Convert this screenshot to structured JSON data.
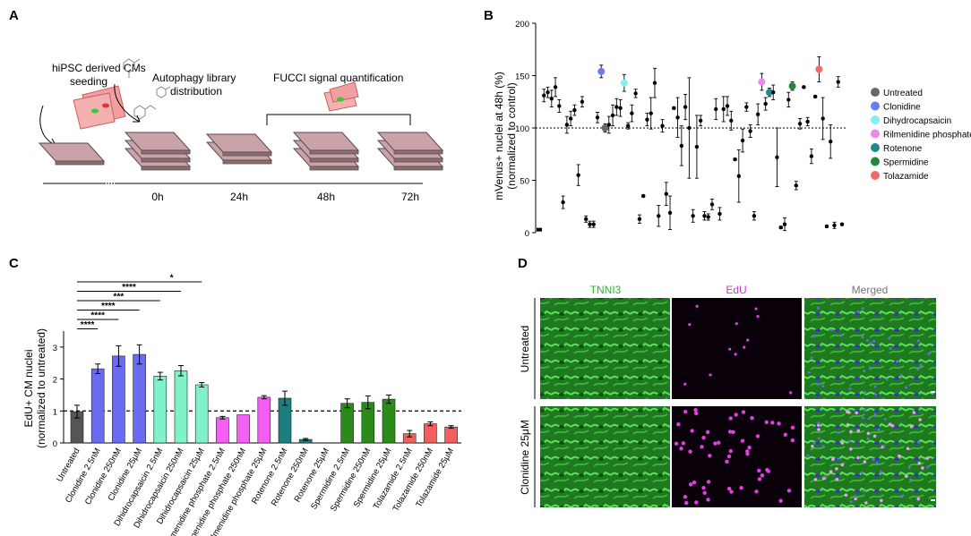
{
  "panels": {
    "a": "A",
    "b": "B",
    "c": "C",
    "d": "D"
  },
  "panel_a": {
    "step1": [
      "hiPSC derived CMs",
      "seeding"
    ],
    "step2": "Autophagy library",
    "step2b": "distribution",
    "step3": "FUCCI signal quantification",
    "timepoints": [
      "0h",
      "24h",
      "48h",
      "72h"
    ]
  },
  "chart_data": [
    {
      "type": "scatter",
      "panel": "B",
      "ylabel": "mVenus+ nuclei at 48h (%)",
      "ylabel2": "(normalized to control)",
      "ylim": [
        0,
        200
      ],
      "yticks": [
        "0",
        "50",
        "100",
        "150",
        "200"
      ],
      "reference_line": 100,
      "legend": [
        {
          "label": "Untreated",
          "color": "#666666"
        },
        {
          "label": "Clonidine",
          "color": "#6a7de8"
        },
        {
          "label": "Dihydrocapsaicin",
          "color": "#7ff2f2"
        },
        {
          "label": "Rilmenidine phosphate",
          "color": "#ef86ef"
        },
        {
          "label": "Rotenone",
          "color": "#1e8c8c"
        },
        {
          "label": "Spermidine",
          "color": "#218a3a"
        },
        {
          "label": "Tolazamide",
          "color": "#ee6b66"
        }
      ],
      "points": [
        {
          "v": 2,
          "e": 0,
          "c": "#000000"
        },
        {
          "v": 131,
          "e": 6,
          "c": "#000000"
        },
        {
          "v": 134,
          "e": 5,
          "c": "#000000"
        },
        {
          "v": 128,
          "e": 8,
          "c": "#000000"
        },
        {
          "v": 139,
          "e": 9,
          "c": "#000000"
        },
        {
          "v": 121,
          "e": 6,
          "c": "#000000"
        },
        {
          "v": 29,
          "e": 6,
          "c": "#000000"
        },
        {
          "v": 103,
          "e": 8,
          "c": "#000000"
        },
        {
          "v": 109,
          "e": 7,
          "c": "#000000"
        },
        {
          "v": 117,
          "e": 5,
          "c": "#000000"
        },
        {
          "v": 55,
          "e": 10,
          "c": "#000000"
        },
        {
          "v": 125,
          "e": 5,
          "c": "#000000"
        },
        {
          "v": 13,
          "e": 3,
          "c": "#000000"
        },
        {
          "v": 8,
          "e": 3,
          "c": "#000000"
        },
        {
          "v": 8,
          "e": 3,
          "c": "#000000"
        },
        {
          "v": 110,
          "e": 5,
          "c": "#000000"
        },
        {
          "v": 154,
          "e": 6,
          "c": "#6a7de8"
        },
        {
          "v": 100,
          "e": 4,
          "c": "#666666"
        },
        {
          "v": 103,
          "e": 8,
          "c": "#000000"
        },
        {
          "v": 112,
          "e": 10,
          "c": "#000000"
        },
        {
          "v": 120,
          "e": 8,
          "c": "#000000"
        },
        {
          "v": 119,
          "e": 8,
          "c": "#000000"
        },
        {
          "v": 143,
          "e": 8,
          "c": "#7ff2f2"
        },
        {
          "v": 102,
          "e": 3,
          "c": "#000000"
        },
        {
          "v": 114,
          "e": 8,
          "c": "#000000"
        },
        {
          "v": 133,
          "e": 4,
          "c": "#000000"
        },
        {
          "v": 13,
          "e": 4,
          "c": "#000000"
        },
        {
          "v": 35,
          "e": 1,
          "c": "#000000"
        },
        {
          "v": 108,
          "e": 6,
          "c": "#000000"
        },
        {
          "v": 114,
          "e": 15,
          "c": "#000000"
        },
        {
          "v": 143,
          "e": 14,
          "c": "#000000"
        },
        {
          "v": 16,
          "e": 10,
          "c": "#000000"
        },
        {
          "v": 102,
          "e": 6,
          "c": "#000000"
        },
        {
          "v": 37,
          "e": 11,
          "c": "#000000"
        },
        {
          "v": 19,
          "e": 16,
          "c": "#000000"
        },
        {
          "v": 119,
          "e": 1,
          "c": "#000000"
        },
        {
          "v": 110,
          "e": 19,
          "c": "#000000"
        },
        {
          "v": 83,
          "e": 19,
          "c": "#000000"
        },
        {
          "v": 120,
          "e": 12,
          "c": "#000000"
        },
        {
          "v": 100,
          "e": 48,
          "c": "#000000"
        },
        {
          "v": 16,
          "e": 6,
          "c": "#000000"
        },
        {
          "v": 82,
          "e": 30,
          "c": "#000000"
        },
        {
          "v": 107,
          "e": 5,
          "c": "#000000"
        },
        {
          "v": 16,
          "e": 4,
          "c": "#000000"
        },
        {
          "v": 15,
          "e": 3,
          "c": "#000000"
        },
        {
          "v": 27,
          "e": 5,
          "c": "#000000"
        },
        {
          "v": 118,
          "e": 10,
          "c": "#000000"
        },
        {
          "v": 18,
          "e": 6,
          "c": "#000000"
        },
        {
          "v": 118,
          "e": 12,
          "c": "#000000"
        },
        {
          "v": 121,
          "e": 9,
          "c": "#000000"
        },
        {
          "v": 107,
          "e": 9,
          "c": "#000000"
        },
        {
          "v": 70,
          "e": 1,
          "c": "#000000"
        },
        {
          "v": 54,
          "e": 25,
          "c": "#000000"
        },
        {
          "v": 88,
          "e": 11,
          "c": "#000000"
        },
        {
          "v": 120,
          "e": 4,
          "c": "#000000"
        },
        {
          "v": 97,
          "e": 6,
          "c": "#000000"
        },
        {
          "v": 16,
          "e": 4,
          "c": "#000000"
        },
        {
          "v": 113,
          "e": 10,
          "c": "#000000"
        },
        {
          "v": 144,
          "e": 8,
          "c": "#ef86ef"
        },
        {
          "v": 123,
          "e": 6,
          "c": "#000000"
        },
        {
          "v": 134,
          "e": 4,
          "c": "#1e8c8c"
        },
        {
          "v": 134,
          "e": 7,
          "c": "#000000"
        },
        {
          "v": 72,
          "e": 28,
          "c": "#000000"
        },
        {
          "v": 5,
          "e": 1,
          "c": "#000000"
        },
        {
          "v": 8,
          "e": 6,
          "c": "#000000"
        },
        {
          "v": 127,
          "e": 7,
          "c": "#000000"
        },
        {
          "v": 140,
          "e": 4,
          "c": "#218a3a"
        },
        {
          "v": 45,
          "e": 4,
          "c": "#000000"
        },
        {
          "v": 104,
          "e": 5,
          "c": "#000000"
        },
        {
          "v": 139,
          "e": 1,
          "c": "#000000"
        },
        {
          "v": 106,
          "e": 4,
          "c": "#000000"
        },
        {
          "v": 73,
          "e": 7,
          "c": "#000000"
        },
        {
          "v": 130,
          "e": 1,
          "c": "#000000"
        },
        {
          "v": 156,
          "e": 12,
          "c": "#ee6b66"
        },
        {
          "v": 109,
          "e": 20,
          "c": "#000000"
        },
        {
          "v": 6,
          "e": 1,
          "c": "#000000"
        },
        {
          "v": 87,
          "e": 16,
          "c": "#000000"
        },
        {
          "v": 7,
          "e": 3,
          "c": "#000000"
        },
        {
          "v": 144,
          "e": 5,
          "c": "#000000"
        },
        {
          "v": 8,
          "e": 1,
          "c": "#000000"
        }
      ]
    },
    {
      "type": "bar",
      "panel": "C",
      "ylabel": "EdU+ CM nuclei",
      "ylabel2": "(normalized to untreated)",
      "ylim": [
        0,
        3.5
      ],
      "yticks": [
        "0",
        "1",
        "2",
        "3"
      ],
      "reference_line": 1,
      "categories": [
        "Untreated",
        "Clonidine 2.5nM",
        "Clonidine  250nM",
        "Clonidine  25μM",
        "Dihidrocapsaicin 2.5nM",
        "Dihidrocapsaicin 250nM",
        "Dihidrocapsaicin  25μM",
        "Rilmenidine phosphate 2.5nM",
        "Rilmenidine phosphate 250nM",
        "Rilmenidine phosphate 25μM",
        "Rotenone 2.5nM",
        "Rotenone  250nM",
        "Rotenone  25μM",
        "Spermidine 2.5nM",
        "Spermidine 250nM",
        "Spermidine 25μM",
        "Tolazamide 2.5nM",
        "Tolazamide  250nM",
        "Tolazamide 25μM"
      ],
      "values": [
        0.98,
        2.32,
        2.72,
        2.77,
        2.09,
        2.26,
        1.82,
        0.79,
        0.88,
        1.43,
        1.4,
        0.11,
        0.0,
        1.24,
        1.27,
        1.37,
        0.29,
        0.6,
        0.5
      ],
      "errors": [
        0.2,
        0.15,
        0.32,
        0.3,
        0.12,
        0.16,
        0.07,
        0.04,
        0.0,
        0.05,
        0.22,
        0.03,
        0.0,
        0.14,
        0.2,
        0.13,
        0.1,
        0.06,
        0.04
      ],
      "colors": [
        "#555555",
        "#6b6bf2",
        "#6b6bf2",
        "#6b6bf2",
        "#7ff2c8",
        "#7ff2c8",
        "#7ff2c8",
        "#f25ff2",
        "#f25ff2",
        "#f25ff2",
        "#1b7f80",
        "#1b7f80",
        "#1b7f80",
        "#2b8b1a",
        "#2b8b1a",
        "#2b8b1a",
        "#f25f5f",
        "#f25f5f",
        "#f25f5f"
      ],
      "significance": [
        {
          "label": "*",
          "to": 6
        },
        {
          "label": "****",
          "to": 5
        },
        {
          "label": "***",
          "to": 4
        },
        {
          "label": "****",
          "to": 3
        },
        {
          "label": "****",
          "to": 2
        },
        {
          "label": "****",
          "to": 1
        }
      ]
    }
  ],
  "panel_d": {
    "columns": [
      "TNNI3",
      "EdU",
      "Merged"
    ],
    "column_colors": [
      "#22bb22",
      "#cc33cc",
      "#777777"
    ],
    "rows": [
      "Untreated",
      "Clonidine 25μM"
    ]
  }
}
